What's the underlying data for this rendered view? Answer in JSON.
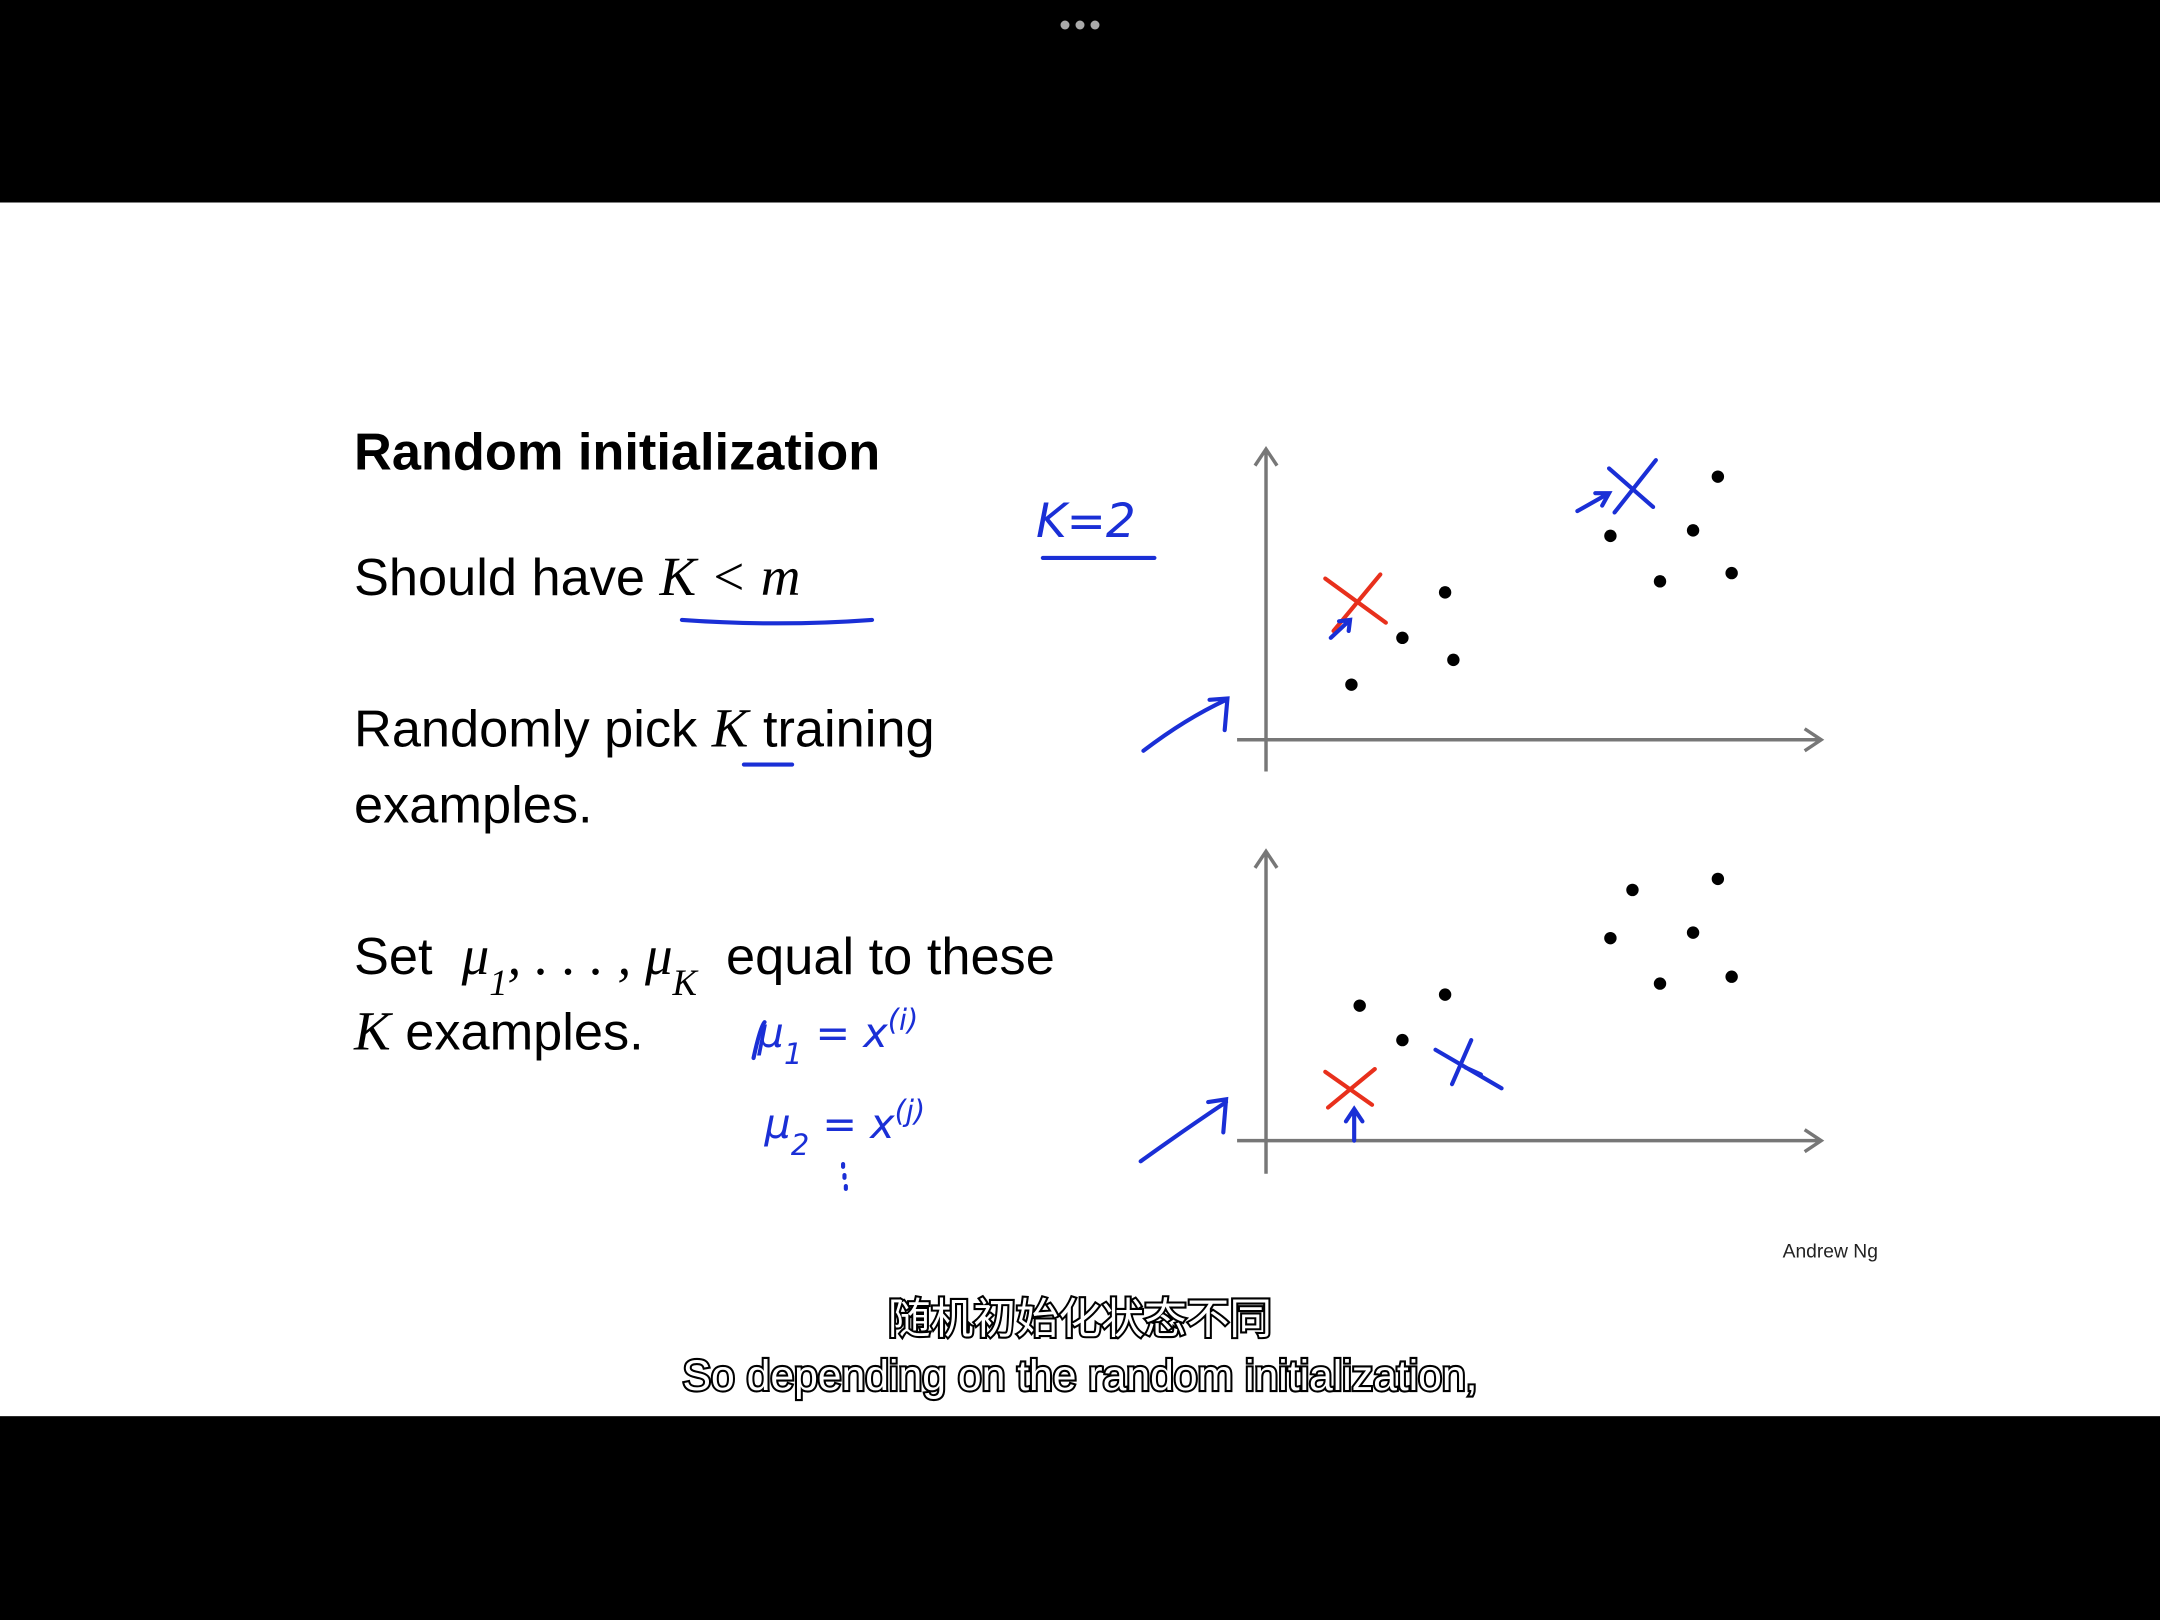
{
  "slide": {
    "title": "Random initialization",
    "lines": [
      [
        {
          "t": "Should have "
        },
        {
          "t": "K < m",
          "s": "math"
        }
      ],
      [
        {
          "t": "Randomly pick "
        },
        {
          "t": "K",
          "s": "math"
        },
        {
          "t": " training"
        }
      ],
      [
        {
          "t": "examples."
        }
      ],
      [
        {
          "t": "Set  "
        },
        {
          "t": "μ",
          "s": "math"
        },
        {
          "t": "1",
          "s": "sub"
        },
        {
          "t": ", . . . , ",
          "s": "math"
        },
        {
          "t": "μ",
          "s": "math"
        },
        {
          "t": "K",
          "s": "sub"
        },
        {
          "t": "  equal to these"
        }
      ],
      [
        {
          "t": "K",
          "s": "math"
        },
        {
          "t": " examples."
        }
      ]
    ],
    "handwriting": [
      [
        {
          "t": "K=2"
        }
      ],
      [
        {
          "t": "μ"
        },
        {
          "t": "1",
          "s": "sub"
        },
        {
          "t": " = x"
        },
        {
          "t": "(i)",
          "s": "sup"
        }
      ],
      [
        {
          "t": "μ"
        },
        {
          "t": "2",
          "s": "sub"
        },
        {
          "t": " = x"
        },
        {
          "t": "(j)",
          "s": "sup"
        }
      ]
    ],
    "author": "Andrew Ng"
  },
  "subtitles": {
    "zh": "随机初始化状态不同",
    "en": "So depending on the random initialization,"
  }
}
